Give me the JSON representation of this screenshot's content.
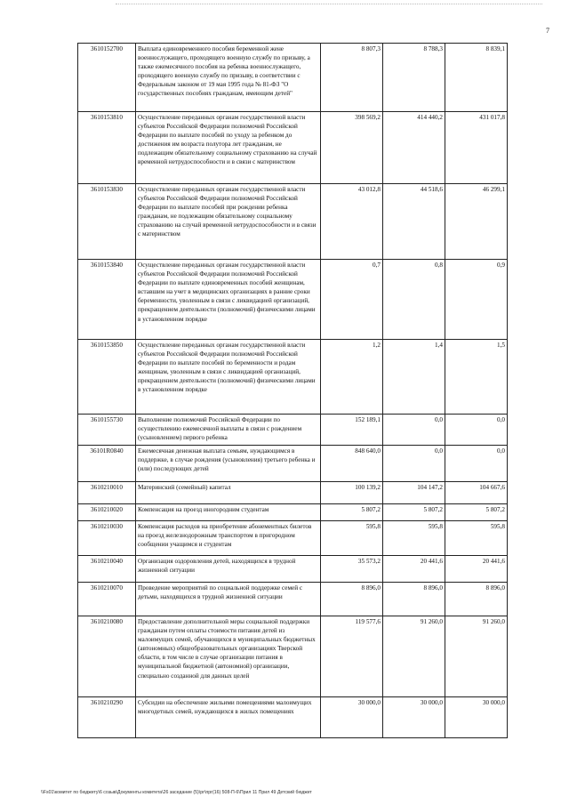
{
  "page_number": "7",
  "rows": [
    {
      "code": "3610152700",
      "name": "Выплата единовременного пособия беременной жене военнослужащего, проходящего военную службу по призыву, а также ежемесячного пособия на ребенка военнослужащего, проходящего военную службу по призыву, в соответствии с Федеральным законом от 19 мая 1995 года № 81-ФЗ \"О государственных пособиях гражданам, имеющим детей\"",
      "v1": "8 807,3",
      "v2": "8 788,3",
      "v3": "8 839,1"
    },
    {
      "code": "3610153810",
      "name": "Осуществление переданных органам государственной власти субъектов Российской Федерации полномочий Российской Федерации по выплате пособий по уходу за ребенком до достижения им возраста полутора лет гражданам, не подлежащим обязательному социальному страхованию на случай временной нетрудоспособности и в связи с материнством",
      "v1": "398 569,2",
      "v2": "414 440,2",
      "v3": "431 017,8"
    },
    {
      "code": "3610153830",
      "name": "Осуществление переданных органам государственной власти субъектов Российской Федерации полномочий Российской Федерации по выплате пособий при рождении ребенка гражданам, не подлежащим обязательному социальному страхованию на случай временной нетрудоспособности и в связи с материнством",
      "v1": "43 012,8",
      "v2": "44 518,6",
      "v3": "46 299,1"
    },
    {
      "code": "3610153840",
      "name": "Осуществление переданных органам государственной власти субъектов Российской Федерации полномочий Российской Федерации по выплате единовременных пособий женщинам, вставшим на учет в медицинских организациях в ранние сроки беременности, уволенным в связи с ликвидацией организаций, прекращением деятельности (полномочий) физическими лицами в установленном порядке",
      "v1": "0,7",
      "v2": "0,8",
      "v3": "0,9"
    },
    {
      "code": "3610153850",
      "name": "Осуществление переданных органам государственной власти субъектов Российской Федерации полномочий Российской Федерации по выплате пособий по беременности и родам женщинам, уволенным в связи с ликвидацией организаций, прекращением деятельности (полномочий) физическими лицами в установленном порядке",
      "v1": "1,2",
      "v2": "1,4",
      "v3": "1,5"
    },
    {
      "code": "3610155730",
      "name": "Выполнение полномочий Российской Федерации по осуществлению ежемесячной выплаты в связи с рождением (усыновлением) первого ребенка",
      "v1": "152 189,1",
      "v2": "0,0",
      "v3": "0,0"
    },
    {
      "code": "36101R0840",
      "name": "Ежемесячная денежная выплата семьям, нуждающимся в поддержке, в случае рождения (усыновления) третьего ребенка и (или) последующих детей",
      "v1": "848 640,0",
      "v2": "0,0",
      "v3": "0,0"
    },
    {
      "code": "3610210010",
      "name": "Материнский (семейный) капитал",
      "v1": "100 139,2",
      "v2": "104 147,2",
      "v3": "104 667,6"
    },
    {
      "code": "3610210020",
      "name": "Компенсация на проезд иногородним студентам",
      "v1": "5 807,2",
      "v2": "5 807,2",
      "v3": "5 807,2"
    },
    {
      "code": "3610210030",
      "name": "Компенсация расходов на приобретение абонементных билетов на проезд железнодорожным транспортом в пригородном сообщении учащимся и студентам",
      "v1": "595,8",
      "v2": "595,8",
      "v3": "595,8"
    },
    {
      "code": "3610210040",
      "name": "Организация оздоровления детей, находящихся в трудной жизненной ситуации",
      "v1": "35 573,2",
      "v2": "20 441,6",
      "v3": "20 441,6"
    },
    {
      "code": "3610210070",
      "name": "Проведение мероприятий по социальной поддержке семей с детьми, находящихся в трудной жизненной ситуации",
      "v1": "8 896,0",
      "v2": "8 896,0",
      "v3": "8 896,0"
    },
    {
      "code": "3610210080",
      "name": "Предоставление дополнительной меры социальной поддержки гражданам путем оплаты стоимости питания детей из малоимущих семей, обучающихся в муниципальных бюджетных (автономных) общеобразовательных организациях Тверской области, в том числе в случае организации питания в муниципальной бюджетной (автономной) организации, специально созданной для данных целей",
      "v1": "119 577,6",
      "v2": "91 260,0",
      "v3": "91 260,0"
    },
    {
      "code": "3610210290",
      "name": "Субсидии на обеспечение жильими помещениями малоимущих многодетных семей, нуждающихся в жилых помещениях",
      "v1": "30 000,0",
      "v2": "30 000,0",
      "v3": "30 000,0"
    }
  ],
  "footer_path": "\\\\Fs01\\комитет по бюджету\\6 созыв\\Документы комитета\\26 заседание (5)\\рг\\прг(16) 508-П-6\\Прил 11 Прил 49 Детский бюджет"
}
